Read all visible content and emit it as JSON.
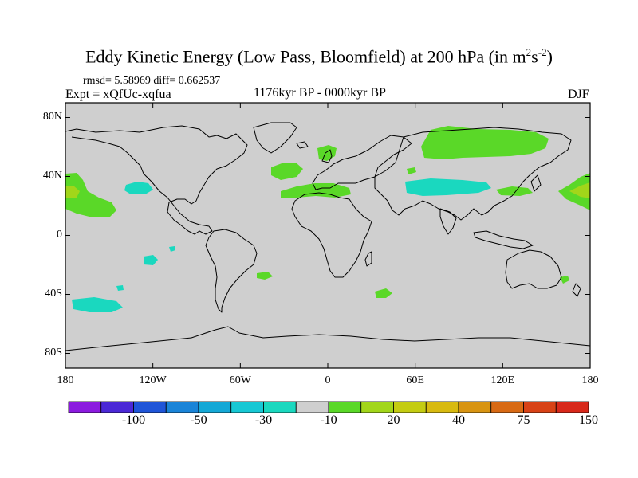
{
  "title": {
    "main": "Eddy Kinetic Energy (Low Pass, Bloomfield) at 200 hPa (in m",
    "sup1": "2",
    "mid": "s",
    "sup2": "-2",
    "close": ")"
  },
  "stats": "rmsd= 5.58969 diff= 0.662537",
  "experiment": "Expt = xQfUc-xqfua",
  "period": "1176kyr BP - 0000kyr BP",
  "season": "DJF",
  "axes": {
    "y_labels": [
      "80N",
      "40N",
      "0",
      "40S",
      "80S"
    ],
    "y_values": [
      80,
      40,
      0,
      -40,
      -80
    ],
    "x_labels": [
      "180",
      "120W",
      "60W",
      "0",
      "60E",
      "120E",
      "180"
    ],
    "x_values": [
      -180,
      -120,
      -60,
      0,
      60,
      120,
      180
    ]
  },
  "colorbar": {
    "colors": [
      "#8b1adf",
      "#4b28d6",
      "#1f55d8",
      "#1a84d8",
      "#14a8d6",
      "#17c8d4",
      "#1ad8bf",
      "#cfcfcf",
      "#5ad828",
      "#a2d61a",
      "#c4cc12",
      "#d8ba10",
      "#d89412",
      "#d86a14",
      "#d84216",
      "#d8281a"
    ],
    "labels": [
      "-100",
      "-50",
      "-30",
      "-10",
      "20",
      "40",
      "75",
      "150"
    ],
    "label_boundary_index": [
      2,
      4,
      6,
      8,
      10,
      12,
      14,
      16
    ]
  },
  "map_colors": {
    "background": "#cfcfcf",
    "green": "#5ad828",
    "yellowgreen": "#a2d61a",
    "cyan": "#1ad8bf",
    "coast": "#000000"
  }
}
